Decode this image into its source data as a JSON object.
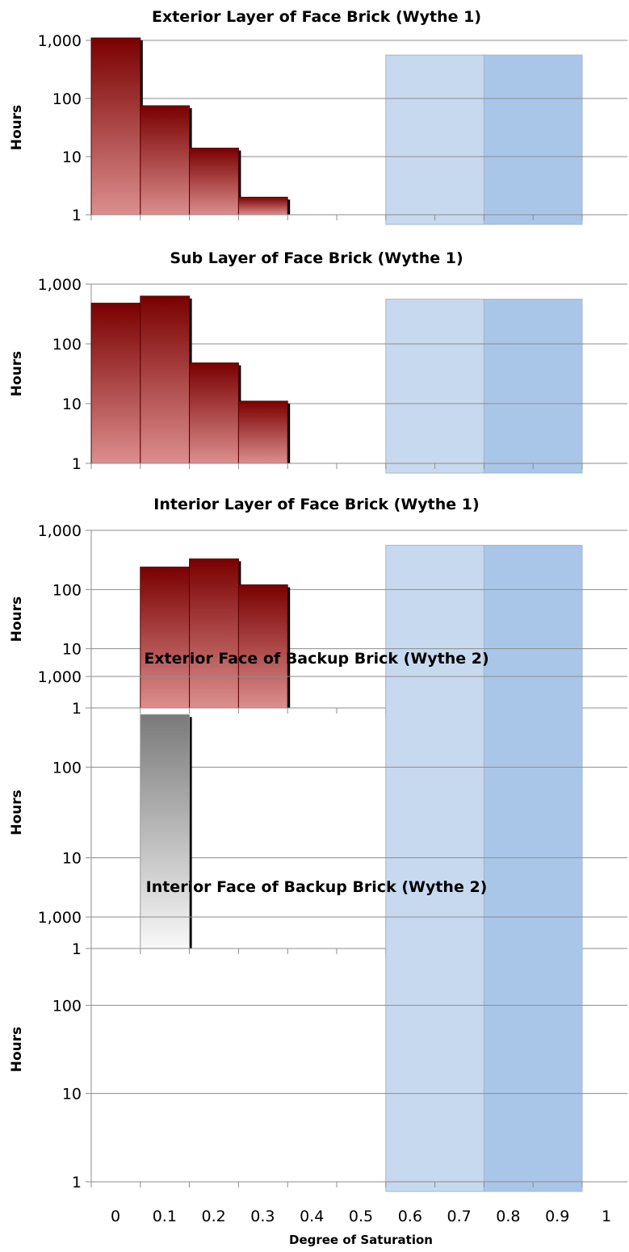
{
  "chart_data": {
    "type": "bar",
    "scale": "log",
    "xlabel": "Degree of Saturation",
    "ylabel": "Hours",
    "ylim": [
      1,
      1000
    ],
    "yticks": [
      1,
      10,
      100,
      1000
    ],
    "ytick_labels": [
      "1",
      "10",
      "100",
      "1,000"
    ],
    "x_categories": [
      "0",
      "0.1",
      "0.2",
      "0.3",
      "0.4",
      "0.5",
      "0.6",
      "0.7",
      "0.8",
      "0.9",
      "1"
    ],
    "grid": true,
    "bar_colors": {
      "red_top": "#7a0000",
      "red_bottom": "#dc8e8e",
      "gray_top": "#7a7a7a",
      "gray_bottom": "#f8f8f8",
      "shadow": "#000000"
    },
    "shaded_zones": [
      {
        "from": 0.6,
        "to": 0.8,
        "color": "#c7d9ef"
      },
      {
        "from": 0.8,
        "to": 1.0,
        "color": "#a9c6e9"
      }
    ],
    "panels": [
      {
        "title": "Exterior Layer of Face Brick (Wythe 1)",
        "color": "red",
        "bars": [
          {
            "x0": 0.0,
            "x1": 0.1,
            "value": 1100
          },
          {
            "x0": 0.1,
            "x1": 0.2,
            "value": 75
          },
          {
            "x0": 0.2,
            "x1": 0.3,
            "value": 14
          },
          {
            "x0": 0.3,
            "x1": 0.4,
            "value": 2
          }
        ],
        "zone_top": 560
      },
      {
        "title": "Sub Layer of Face Brick (Wythe 1)",
        "color": "red",
        "bars": [
          {
            "x0": 0.0,
            "x1": 0.1,
            "value": 480
          },
          {
            "x0": 0.1,
            "x1": 0.2,
            "value": 630
          },
          {
            "x0": 0.2,
            "x1": 0.3,
            "value": 48
          },
          {
            "x0": 0.3,
            "x1": 0.4,
            "value": 11
          }
        ],
        "zone_top": 560
      },
      {
        "title": "Interior Layer of Face Brick (Wythe 1)",
        "color": "red",
        "bars": [
          {
            "x0": 0.1,
            "x1": 0.2,
            "value": 240
          },
          {
            "x0": 0.2,
            "x1": 0.3,
            "value": 330
          },
          {
            "x0": 0.3,
            "x1": 0.4,
            "value": 120
          }
        ],
        "zone_top": 560
      },
      {
        "title": "Exterior Face of Backup Brick (Wythe 2)",
        "color": "gray",
        "bars": [
          {
            "x0": 0.1,
            "x1": 0.2,
            "value": 380
          }
        ],
        "zone_top": 1000
      },
      {
        "title": "Interior Face of Backup Brick (Wythe 2)",
        "color": "red",
        "bars": [],
        "zone_top": 1000
      }
    ]
  }
}
